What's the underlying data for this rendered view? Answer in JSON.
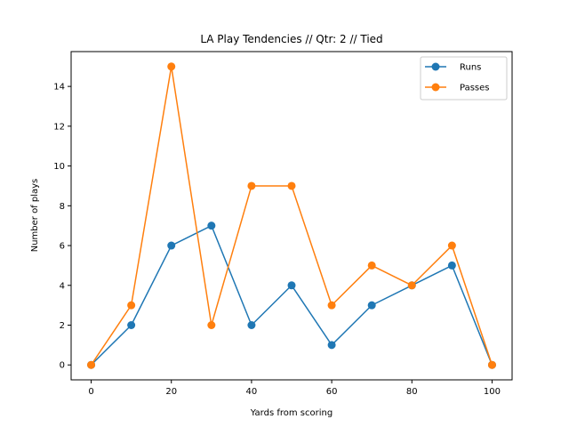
{
  "chart_data": {
    "type": "line",
    "title": "LA Play Tendencies // Qtr: 2 // Tied",
    "xlabel": "Yards from scoring",
    "ylabel": "Number of plays",
    "x": [
      0,
      10,
      20,
      30,
      40,
      50,
      60,
      70,
      80,
      90,
      100
    ],
    "xlim": [
      -5,
      105
    ],
    "ylim": [
      -0.75,
      15.75
    ],
    "xticks": [
      0,
      20,
      40,
      60,
      80,
      100
    ],
    "yticks": [
      0,
      2,
      4,
      6,
      8,
      10,
      12,
      14
    ],
    "grid": false,
    "legend": "top-right",
    "series": [
      {
        "name": "Runs",
        "color": "#1f77b4",
        "marker": "circle",
        "values": [
          0,
          2,
          6,
          7,
          2,
          4,
          1,
          3,
          4,
          5,
          0
        ]
      },
      {
        "name": "Passes",
        "color": "#ff7f0e",
        "marker": "circle",
        "values": [
          0,
          3,
          15,
          2,
          9,
          9,
          3,
          5,
          4,
          6,
          0
        ]
      }
    ]
  }
}
